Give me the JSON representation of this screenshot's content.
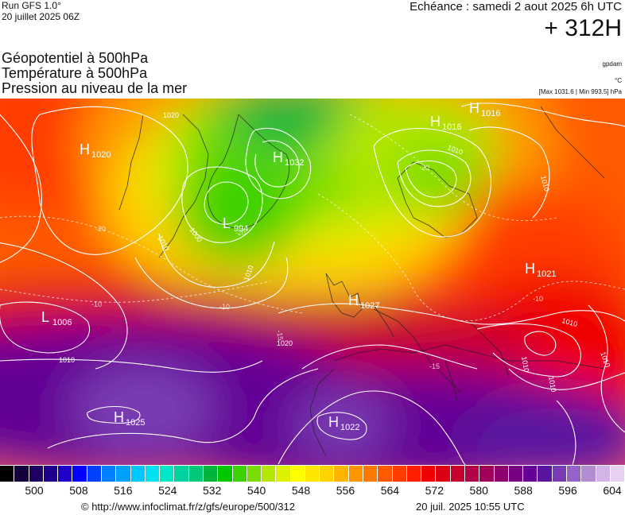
{
  "header": {
    "run": "Run GFS 1.0°",
    "run_date": "20 juillet 2025 06Z",
    "echeance": "Echéance : samedi 2 aout 2025 6h UTC",
    "lead_time": "+ 312H",
    "unit_gpdam": "gpdam",
    "unit_celsius": "°C",
    "pressure_range": "[Max 1031.6 | Min 993.5] hPa"
  },
  "parameters": [
    "Géopotentiel à 500hPa",
    "Température à 500hPa",
    "Pression au niveau de la mer"
  ],
  "centers": [
    {
      "letter": "H",
      "value": "1020"
    },
    {
      "letter": "H",
      "value": "1032"
    },
    {
      "letter": "L",
      "value": "994"
    },
    {
      "letter": "H",
      "value": "1016"
    },
    {
      "letter": "H",
      "value": "1016"
    },
    {
      "letter": "H",
      "value": "1021"
    },
    {
      "letter": "H",
      "value": "1027"
    },
    {
      "letter": "L",
      "value": "1006"
    },
    {
      "letter": "H",
      "value": "1025"
    },
    {
      "letter": "H",
      "value": "1022"
    }
  ],
  "isobar_labels": [
    "1020",
    "1010",
    "1000",
    "1010",
    "1010",
    "1020",
    "1010",
    "1010",
    "1010",
    "1010",
    "1010",
    "1010"
  ],
  "temperature_labels": [
    "-20",
    "-10",
    "-10",
    "-20",
    "-20",
    "-15",
    "-15",
    "-10"
  ],
  "legend": {
    "colors": [
      "#000000",
      "#14003c",
      "#1e0064",
      "#1e008c",
      "#1e00c8",
      "#0000ff",
      "#0040ff",
      "#0080ff",
      "#00a0ff",
      "#00c8ff",
      "#00e0f0",
      "#00e6c8",
      "#00d2a0",
      "#00c878",
      "#00b43c",
      "#00c800",
      "#3cd200",
      "#78dc00",
      "#b4e600",
      "#dcf000",
      "#ffff00",
      "#ffe600",
      "#ffd200",
      "#ffb400",
      "#ff9600",
      "#ff7800",
      "#ff5a00",
      "#ff3c00",
      "#ff1e00",
      "#f00000",
      "#dc0014",
      "#c8002d",
      "#b40046",
      "#a0005a",
      "#8c006e",
      "#780082",
      "#640096",
      "#5a14a0",
      "#7a3cb4",
      "#9664c8",
      "#b48cd2",
      "#d2b4e6",
      "#e6d2f0"
    ],
    "ticks": [
      "500",
      "508",
      "516",
      "524",
      "532",
      "540",
      "548",
      "556",
      "564",
      "572",
      "580",
      "588",
      "596",
      "604"
    ]
  },
  "footer": {
    "url": "© http://www.infoclimat.fr/z/gfs/europe/500/312",
    "date": "20 juil. 2025 10:55 UTC"
  }
}
